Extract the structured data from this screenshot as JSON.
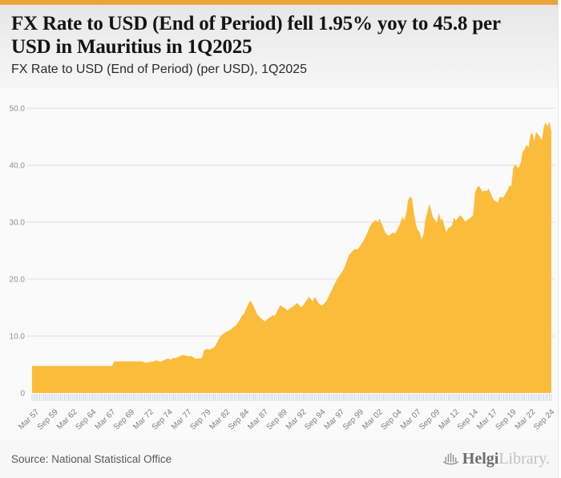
{
  "accent_color": "#E9A53C",
  "header": {
    "title": "FX Rate to USD (End of Period) fell 1.95% yoy to 45.8 per USD in Mauritius in 1Q2025",
    "subtitle": "FX Rate to USD (End of Period) (per USD), 1Q2025"
  },
  "footer": {
    "source": "Source: National Statistical Office",
    "brand": {
      "name": "Helgi",
      "suffix": "Library."
    }
  },
  "chart_data": {
    "type": "area",
    "title": "FX Rate to USD (End of Period) (per USD), 1Q2025",
    "series_name": "FX Rate to USD (End of Period), per USD",
    "country": "Mauritius",
    "latest_value": 45.8,
    "latest_period": "1Q2025",
    "yoy_change_pct": -1.95,
    "frequency": "quarterly",
    "x_start": "Mar 1957",
    "x_end": "Mar 2025",
    "ylim": [
      0,
      50
    ],
    "y_ticks": [
      0,
      10,
      20,
      30,
      40,
      50
    ],
    "y_tick_labels": [
      "0",
      "10.0",
      "20.0",
      "30.0",
      "40.0",
      "50.0"
    ],
    "x_tick_step_quarters": 10,
    "x_tick_labels": [
      "Mar 57",
      "Sep 59",
      "Mar 62",
      "Sep 64",
      "Mar 67",
      "Sep 69",
      "Mar 72",
      "Sep 74",
      "Mar 77",
      "Sep 79",
      "Mar 82",
      "Sep 84",
      "Mar 87",
      "Sep 89",
      "Mar 92",
      "Sep 94",
      "Mar 97",
      "Sep 99",
      "Mar 02",
      "Sep 04",
      "Mar 07",
      "Sep 09",
      "Mar 12",
      "Sep 14",
      "Mar 17",
      "Sep 19",
      "Mar 22",
      "Sep 24"
    ],
    "grid": "horizontal",
    "legend": false,
    "area_color": "#FBBC3B",
    "grid_color": "#DDDDDD",
    "tick_color": "#CBD5E6",
    "axis_label_color": "#8E8E8E",
    "x_label_color": "#7D7D7D",
    "values": [
      4.76,
      4.76,
      4.76,
      4.76,
      4.76,
      4.76,
      4.76,
      4.76,
      4.76,
      4.76,
      4.76,
      4.76,
      4.76,
      4.76,
      4.76,
      4.76,
      4.76,
      4.76,
      4.76,
      4.76,
      4.76,
      4.76,
      4.76,
      4.76,
      4.76,
      4.76,
      4.76,
      4.76,
      4.76,
      4.76,
      4.76,
      4.76,
      4.76,
      4.76,
      4.76,
      4.76,
      4.76,
      4.76,
      4.76,
      4.76,
      4.76,
      4.76,
      4.76,
      5.55,
      5.55,
      5.55,
      5.55,
      5.55,
      5.55,
      5.55,
      5.55,
      5.55,
      5.55,
      5.55,
      5.55,
      5.55,
      5.55,
      5.55,
      5.55,
      5.33,
      5.33,
      5.38,
      5.45,
      5.5,
      5.6,
      5.72,
      5.65,
      5.5,
      5.6,
      5.75,
      5.9,
      6.05,
      5.95,
      5.85,
      6.2,
      6.08,
      6.25,
      6.4,
      6.55,
      6.68,
      6.6,
      6.5,
      6.42,
      6.55,
      6.35,
      6.15,
      5.98,
      6.1,
      6.05,
      6.2,
      7.4,
      7.72,
      7.68,
      7.6,
      7.78,
      7.9,
      8.3,
      8.9,
      9.6,
      10.1,
      10.35,
      10.6,
      10.8,
      10.95,
      11.1,
      11.45,
      11.7,
      11.95,
      12.45,
      13,
      13.6,
      13.9,
      14.7,
      15.4,
      16.2,
      15.9,
      15.3,
      14.5,
      13.8,
      13.4,
      13.1,
      12.8,
      12.6,
      12.9,
      13.15,
      13.35,
      13.7,
      13.5,
      14.1,
      14.8,
      15.4,
      15.2,
      15,
      14.7,
      14.5,
      14.85,
      15.05,
      15.3,
      15.6,
      15.8,
      15.35,
      15.05,
      15.45,
      15.9,
      16.4,
      16.9,
      16.5,
      16,
      16.9,
      16.4,
      15.8,
      15.5,
      15.4,
      15.7,
      16.1,
      16.7,
      17.4,
      18.1,
      18.8,
      19.5,
      20.1,
      20.6,
      21.1,
      21.6,
      22.4,
      23.3,
      24.2,
      24.6,
      25,
      25.3,
      25.2,
      25.4,
      25.9,
      26.4,
      27,
      27.7,
      28.5,
      29.2,
      29.8,
      30.1,
      30.4,
      30,
      30.6,
      29.8,
      29,
      28.2,
      27.8,
      27.6,
      27.9,
      28.2,
      28,
      28.5,
      29.2,
      29.9,
      30.9,
      30.3,
      31.7,
      33.9,
      34.5,
      34.2,
      31.6,
      29.7,
      28.6,
      28.3,
      26.9,
      27.8,
      30.4,
      31.7,
      33.2,
      32.1,
      30.8,
      30.4,
      29.8,
      31.7,
      30.4,
      30.6,
      29.3,
      28.2,
      29,
      29.1,
      29.5,
      30.8,
      30.3,
      30.7,
      31.2,
      31,
      30.5,
      30.1,
      30.4,
      30.6,
      30.9,
      31.2,
      35.2,
      36,
      36.4,
      35.9,
      35.3,
      35.6,
      35.4,
      35.9,
      35.3,
      34.4,
      33.8,
      33.7,
      33.4,
      34.5,
      34.3,
      34.4,
      35,
      35.6,
      36.4,
      36.3,
      39.4,
      40.1,
      39.7,
      39.6,
      40.5,
      42.4,
      42.8,
      43.6,
      43.1,
      45.3,
      45.7,
      44.2,
      45.9,
      45.4,
      45,
      44.3,
      46.7,
      47.5,
      46.8,
      47.7,
      45.8
    ]
  }
}
